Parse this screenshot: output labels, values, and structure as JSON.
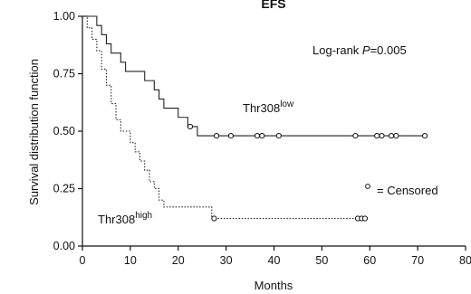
{
  "chart_data": {
    "type": "line",
    "title": "EFS",
    "xlabel": "Months",
    "ylabel": "Survival distribution function",
    "xlim": [
      0,
      80
    ],
    "ylim": [
      0,
      1
    ],
    "xticks": [
      0,
      10,
      20,
      30,
      40,
      50,
      60,
      70,
      80
    ],
    "yticks": [
      0.0,
      0.25,
      0.5,
      0.75,
      1.0
    ],
    "xtick_labels": [
      "0",
      "10",
      "20",
      "30",
      "40",
      "50",
      "60",
      "70",
      "80"
    ],
    "ytick_labels": [
      "0.00",
      "0.25",
      "0.50",
      "0.75",
      "1.00"
    ],
    "grid": false,
    "annotations": {
      "logrank_prefix": "Log-rank ",
      "logrank_p": "P",
      "logrank_value": "=0.005",
      "censored_text": "= Censored"
    },
    "series": [
      {
        "label_base": "Thr308",
        "label_sup": "low",
        "line_style": "solid",
        "color": "#222222",
        "steps": [
          [
            0,
            1.0
          ],
          [
            3,
            0.96
          ],
          [
            4,
            0.92
          ],
          [
            5,
            0.88
          ],
          [
            6,
            0.84
          ],
          [
            8,
            0.8
          ],
          [
            9,
            0.76
          ],
          [
            13,
            0.72
          ],
          [
            15,
            0.68
          ],
          [
            16,
            0.64
          ],
          [
            17,
            0.6
          ],
          [
            20,
            0.56
          ],
          [
            22,
            0.52
          ],
          [
            24,
            0.48
          ],
          [
            72,
            0.48
          ]
        ],
        "censored": [
          22.5,
          28,
          31,
          36.5,
          37.5,
          41,
          57,
          61.5,
          62.5,
          64.5,
          65.5,
          71.5
        ]
      },
      {
        "label_base": "Thr308",
        "label_sup": "high",
        "line_style": "dotted",
        "color": "#222222",
        "steps": [
          [
            0,
            1.0
          ],
          [
            1,
            0.95
          ],
          [
            2,
            0.9
          ],
          [
            3,
            0.85
          ],
          [
            4,
            0.77
          ],
          [
            5,
            0.7
          ],
          [
            6,
            0.62
          ],
          [
            7,
            0.55
          ],
          [
            8,
            0.5
          ],
          [
            10,
            0.45
          ],
          [
            11,
            0.41
          ],
          [
            12,
            0.37
          ],
          [
            13,
            0.33
          ],
          [
            14,
            0.28
          ],
          [
            15,
            0.25
          ],
          [
            16,
            0.2
          ],
          [
            17,
            0.17
          ],
          [
            27,
            0.12
          ],
          [
            59,
            0.12
          ]
        ],
        "censored": [
          27.5,
          57.5,
          58.3,
          59
        ]
      }
    ]
  }
}
